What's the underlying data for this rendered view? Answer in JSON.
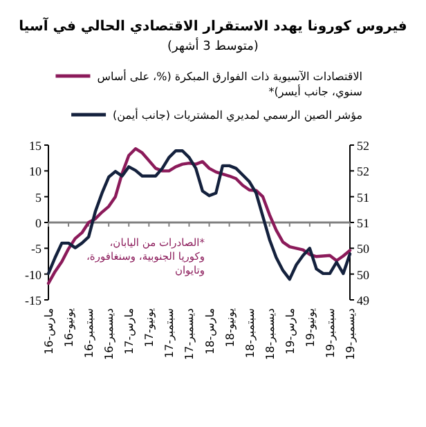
{
  "chart_data": {
    "type": "line",
    "title": "فيروس كورونا يهدد الاستقرار الاقتصادي الحالي في آسيا",
    "subtitle": "(متوسط 3 أشهر)",
    "categories": [
      "مارس-16",
      null,
      null,
      "يونيو-16",
      null,
      null,
      "سبتمبر-16",
      null,
      null,
      "ديسمبر-16",
      null,
      null,
      "مارس-17",
      null,
      null,
      "يونيو-17",
      null,
      null,
      "سبتمبر-17",
      null,
      null,
      "ديسمبر-17",
      null,
      null,
      "مارس-18",
      null,
      null,
      "يونيو-18",
      null,
      null,
      "سبتمبر-18",
      null,
      null,
      "ديسمبر-18",
      null,
      null,
      "مارس-19",
      null,
      null,
      "يونيو-19",
      null,
      null,
      "سبتمبر-19",
      null,
      null,
      "ديسمبر-19"
    ],
    "series": [
      {
        "name": "الاقتصادات الآسيوية ذات الفوارق المبكرة (%، على أساس سنوي، جانب أيسر)*",
        "color": "#8b1a5a",
        "values": [
          -11.8,
          -9.5,
          -7.6,
          -5.1,
          -3.1,
          -2,
          0,
          0.7,
          2,
          3.1,
          5,
          9.5,
          13,
          14.3,
          13.5,
          12,
          10.5,
          10,
          10,
          10.8,
          11.3,
          11.5,
          11.3,
          11.8,
          10.5,
          9.8,
          9.4,
          9,
          8.5,
          7.2,
          6.3,
          6.2,
          5,
          1.5,
          -1.5,
          -3.8,
          -4.7,
          -5,
          -5.3,
          -6.2,
          -6.6,
          -6.5,
          -6.4,
          -7.4,
          -6.5,
          -5.4
        ]
      },
      {
        "name": "مؤشر الصين الرسمي لمديري المشتريات (جانب أيمن)",
        "color": "#14213d",
        "axis": "y2",
        "values": [
          49.51,
          49.82,
          50.1,
          50.1,
          50.01,
          50.1,
          50.22,
          50.71,
          51.07,
          51.38,
          51.49,
          51.4,
          51.58,
          51.51,
          51.4,
          51.4,
          51.4,
          51.55,
          51.76,
          51.89,
          51.89,
          51.76,
          51.55,
          51.11,
          51.02,
          51.07,
          51.6,
          51.6,
          51.55,
          51.42,
          51.29,
          51.07,
          50.62,
          50.17,
          49.82,
          49.57,
          49.4,
          49.68,
          49.86,
          50.0,
          49.6,
          49.51,
          49.51,
          49.73,
          49.51,
          49.89
        ]
      }
    ],
    "ylim": [
      -15,
      15
    ],
    "yticks": [
      -15,
      -10,
      -5,
      0,
      5,
      10,
      15
    ],
    "y2lim": [
      49,
      52
    ],
    "y2ticks": [
      49,
      {
        "value": 49.5,
        "label": "50"
      },
      50,
      {
        "value": 50.5,
        "label": "51"
      },
      51,
      {
        "value": 51.5,
        "label": "52"
      },
      52
    ],
    "annotations": [
      "*الصادرات من اليابان، وكوريا الجنوبية، وسنغافورة، وتايوان"
    ],
    "legend": "top"
  }
}
